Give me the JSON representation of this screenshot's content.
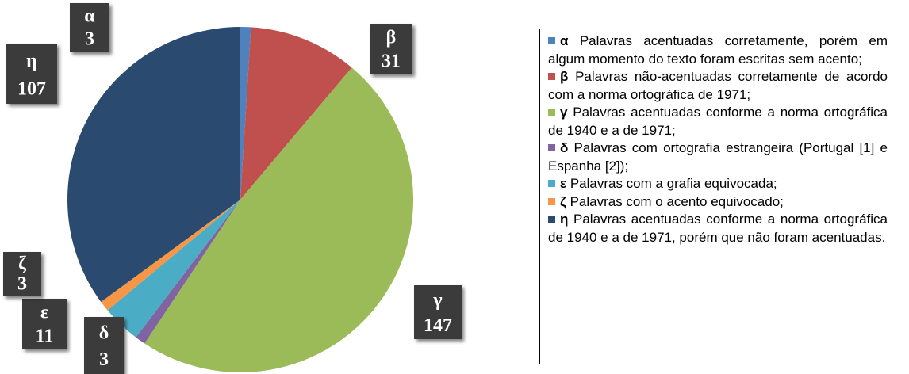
{
  "chart_data": {
    "type": "pie",
    "categories": [
      "α",
      "β",
      "γ",
      "δ",
      "ε",
      "ζ",
      "η"
    ],
    "values": [
      3,
      31,
      147,
      3,
      11,
      3,
      107
    ],
    "colors": [
      "#4f81bd",
      "#c0504d",
      "#9bbb59",
      "#8064a2",
      "#4bacc6",
      "#f79646",
      "#2b4a70"
    ],
    "descriptions": [
      "Palavras acentuadas corretamente, porém em algum momento do texto foram escritas sem acento;",
      "Palavras não-acentuadas corretamente de acordo com a norma ortográfica de 1971;",
      "Palavras acentuadas conforme a norma ortográfica de 1940 e a de 1971;",
      "Palavras com ortografia estrangeira (Portugal [1] e Espanha [2]);",
      "Palavras com a grafia equivocada;",
      "Palavras com o acento equivocado;",
      "Palavras acentuadas conforme a norma ortográfica de 1940 e a de 1971, porém que não foram acentuadas."
    ]
  }
}
